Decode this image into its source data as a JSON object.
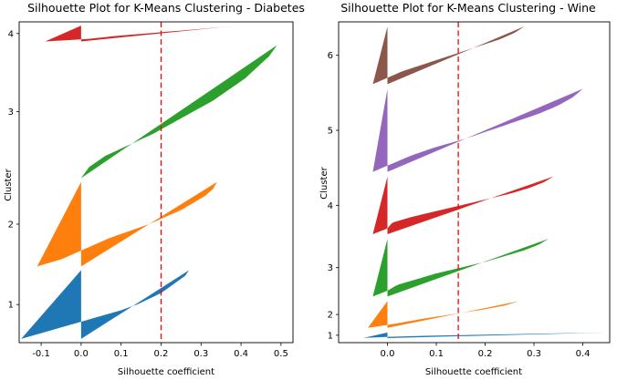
{
  "chart_data": [
    {
      "type": "area",
      "title": "Silhouette Plot for K-Means Clustering - Diabetes",
      "xlabel": "Silhouette coefficient",
      "ylabel": "Cluster",
      "xlim": [
        -0.155,
        0.53
      ],
      "xticks": [
        "-0.1",
        "0.0",
        "0.1",
        "0.2",
        "0.3",
        "0.4",
        "0.5"
      ],
      "xtick_values": [
        -0.1,
        0.0,
        0.1,
        0.2,
        0.3,
        0.4,
        0.5
      ],
      "average_silhouette": 0.2,
      "reference_line_color": "#ff0000",
      "series": [
        {
          "name": "1",
          "color": "#1f77b4",
          "silhouette_min": -0.15,
          "silhouette_max": 0.27,
          "samples": 182,
          "profile": [
            0.27,
            0.26,
            0.24,
            0.22,
            0.2,
            0.17,
            0.14,
            0.1,
            0.05,
            0.0,
            -0.05,
            -0.1,
            -0.15
          ]
        },
        {
          "name": "2",
          "color": "#ff7f0e",
          "silhouette_min": -0.11,
          "silhouette_max": 0.34,
          "samples": 224,
          "profile": [
            0.34,
            0.33,
            0.31,
            0.28,
            0.25,
            0.21,
            0.17,
            0.12,
            0.07,
            0.03,
            -0.01,
            -0.05,
            -0.11
          ]
        },
        {
          "name": "3",
          "color": "#2ca02c",
          "silhouette_min": 0.0,
          "silhouette_max": 0.49,
          "samples": 352,
          "profile": [
            0.49,
            0.47,
            0.44,
            0.41,
            0.37,
            0.33,
            0.28,
            0.23,
            0.18,
            0.12,
            0.06,
            0.02,
            0.0
          ]
        },
        {
          "name": "4",
          "color": "#d62728",
          "silhouette_min": -0.09,
          "silhouette_max": 0.39,
          "samples": 42,
          "profile": [
            0.39,
            0.32,
            0.24,
            0.16,
            0.08,
            0.02,
            -0.09
          ]
        }
      ]
    },
    {
      "type": "area",
      "title": "Silhouette Plot for K-Means Clustering - Wine",
      "xlabel": "Silhouette coefficient",
      "ylabel": "Cluster",
      "xlim": [
        -0.1,
        0.455
      ],
      "xticks": [
        "0.0",
        "0.1",
        "0.2",
        "0.3",
        "0.4"
      ],
      "xtick_values": [
        0.0,
        0.1,
        0.2,
        0.3,
        0.4
      ],
      "average_silhouette": 0.145,
      "reference_line_color": "#ff0000",
      "series": [
        {
          "name": "1",
          "color": "#1f77b4",
          "silhouette_min": -0.05,
          "silhouette_max": 0.45,
          "samples": 12,
          "profile": [
            0.45,
            0.32,
            0.2,
            0.08,
            0.0,
            -0.05
          ]
        },
        {
          "name": "2",
          "color": "#ff7f0e",
          "silhouette_min": -0.04,
          "silhouette_max": 0.27,
          "samples": 58,
          "profile": [
            0.27,
            0.24,
            0.19,
            0.13,
            0.07,
            0.02,
            -0.04
          ]
        },
        {
          "name": "3",
          "color": "#2ca02c",
          "silhouette_min": -0.03,
          "silhouette_max": 0.33,
          "samples": 125,
          "profile": [
            0.33,
            0.31,
            0.28,
            0.24,
            0.2,
            0.15,
            0.1,
            0.06,
            0.02,
            0.0,
            -0.03
          ]
        },
        {
          "name": "4",
          "color": "#d62728",
          "silhouette_min": -0.03,
          "silhouette_max": 0.34,
          "samples": 125,
          "profile": [
            0.34,
            0.32,
            0.29,
            0.25,
            0.2,
            0.15,
            0.1,
            0.05,
            0.01,
            0.0,
            -0.03
          ]
        },
        {
          "name": "5",
          "color": "#9467bd",
          "silhouette_min": -0.03,
          "silhouette_max": 0.4,
          "samples": 180,
          "profile": [
            0.4,
            0.38,
            0.35,
            0.31,
            0.26,
            0.21,
            0.16,
            0.1,
            0.05,
            0.01,
            -0.03
          ]
        },
        {
          "name": "6",
          "color": "#8c564b",
          "silhouette_min": -0.03,
          "silhouette_max": 0.28,
          "samples": 125,
          "profile": [
            0.28,
            0.26,
            0.23,
            0.19,
            0.15,
            0.11,
            0.07,
            0.03,
            0.0,
            -0.03
          ]
        }
      ]
    }
  ]
}
